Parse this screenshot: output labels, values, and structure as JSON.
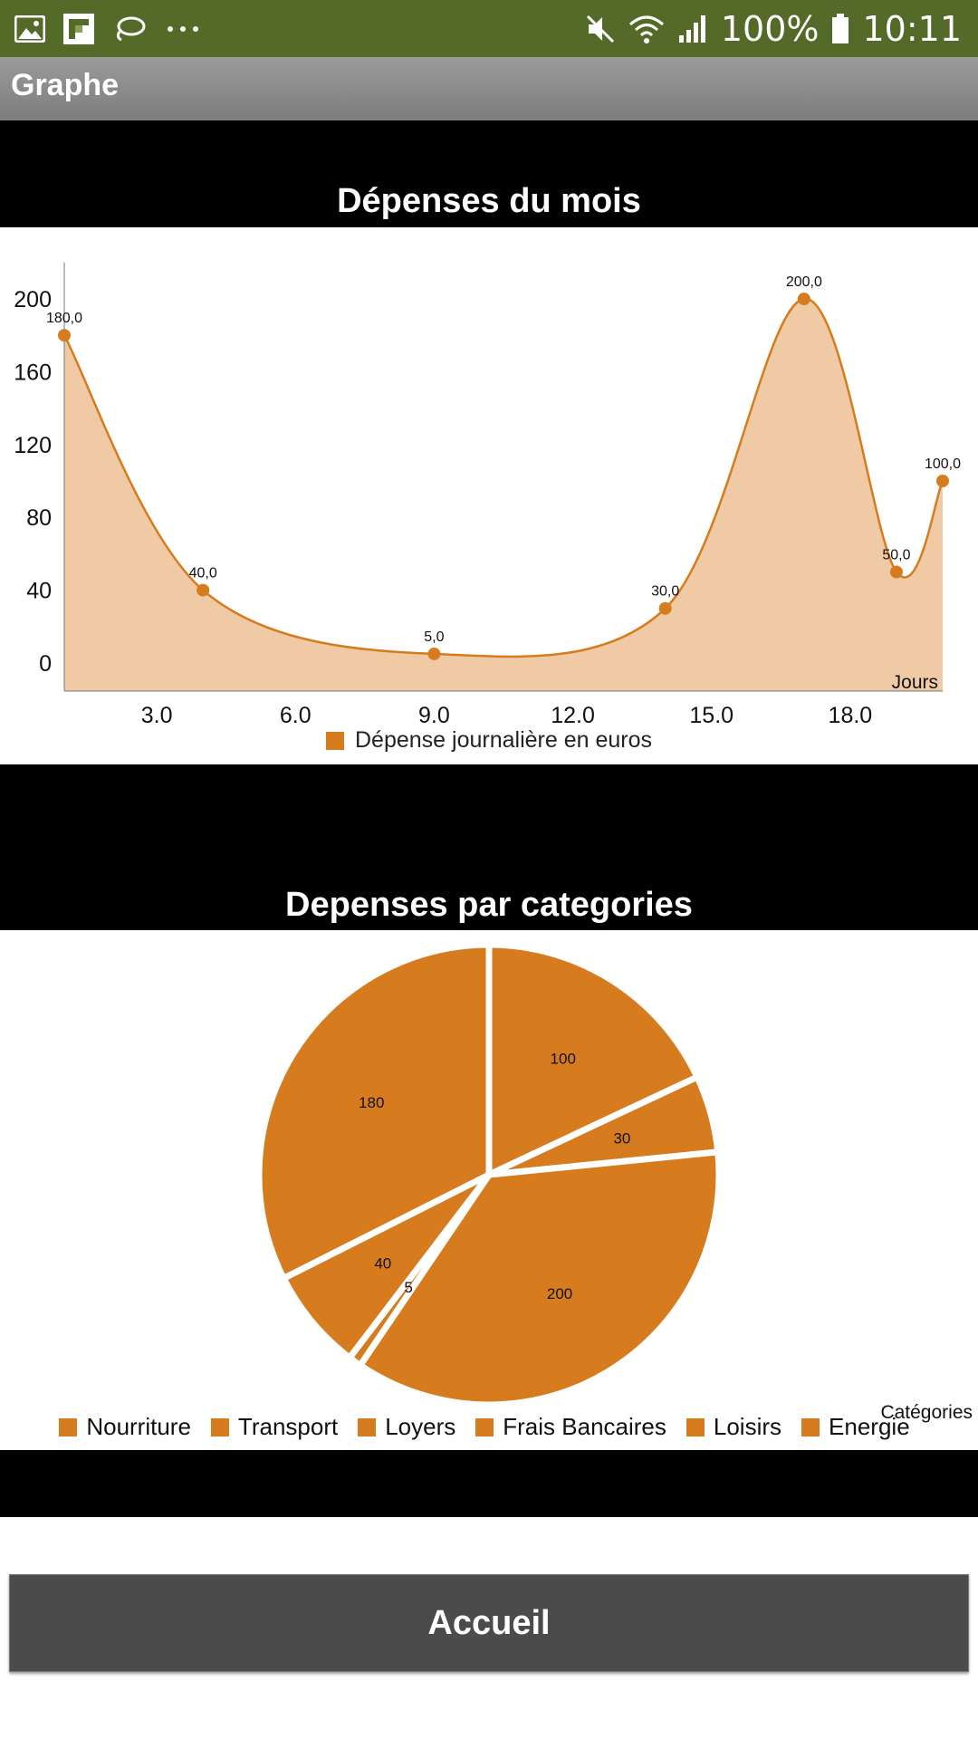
{
  "status_bar": {
    "battery": "100%",
    "time": "10:11",
    "left_icons": [
      "gallery-icon",
      "flipboard-icon",
      "lasso-icon",
      "more-dots-icon"
    ],
    "right_icons": [
      "mute-icon",
      "wifi-icon",
      "signal-icon",
      "battery-icon"
    ]
  },
  "app_bar": {
    "title": "Graphe"
  },
  "line_section": {
    "title": "Dépenses du mois"
  },
  "pie_section": {
    "title": "Depenses par categories"
  },
  "button": {
    "label": "Accueil"
  },
  "colors": {
    "accent": "#d67c1f",
    "area_fill": "#f0caa4",
    "status_bar": "#546a28"
  },
  "chart_data": [
    {
      "type": "area",
      "title": "Dépenses du mois",
      "xlabel": "Jours",
      "ylabel": "",
      "x_tick_labels": [
        "3.0",
        "6.0",
        "9.0",
        "12.0",
        "15.0",
        "18.0"
      ],
      "y_tick_labels": [
        "0",
        "40",
        "80",
        "120",
        "160",
        "200"
      ],
      "xlim": [
        1,
        20
      ],
      "ylim": [
        0,
        200
      ],
      "series": [
        {
          "name": "Dépense journalière en euros",
          "x": [
            1,
            4,
            9,
            14,
            17,
            19,
            20
          ],
          "y": [
            180,
            40,
            5,
            30,
            200,
            50,
            100
          ],
          "labels": [
            "180,0",
            "40,0",
            "5,0",
            "30,0",
            "200,0",
            "50,0",
            "100,0"
          ]
        }
      ],
      "grid": false,
      "legend": "bottom"
    },
    {
      "type": "pie",
      "title": "Depenses par categories",
      "legend_title": "Catégories",
      "categories": [
        "Nourriture",
        "Transport",
        "Loyers",
        "Frais Bancaires",
        "Loisirs",
        "Energie"
      ],
      "values": [
        100,
        30,
        200,
        5,
        40,
        180
      ],
      "value_labels": [
        "100",
        "30",
        "200",
        "5",
        "40",
        "180"
      ],
      "legend": "bottom"
    }
  ]
}
